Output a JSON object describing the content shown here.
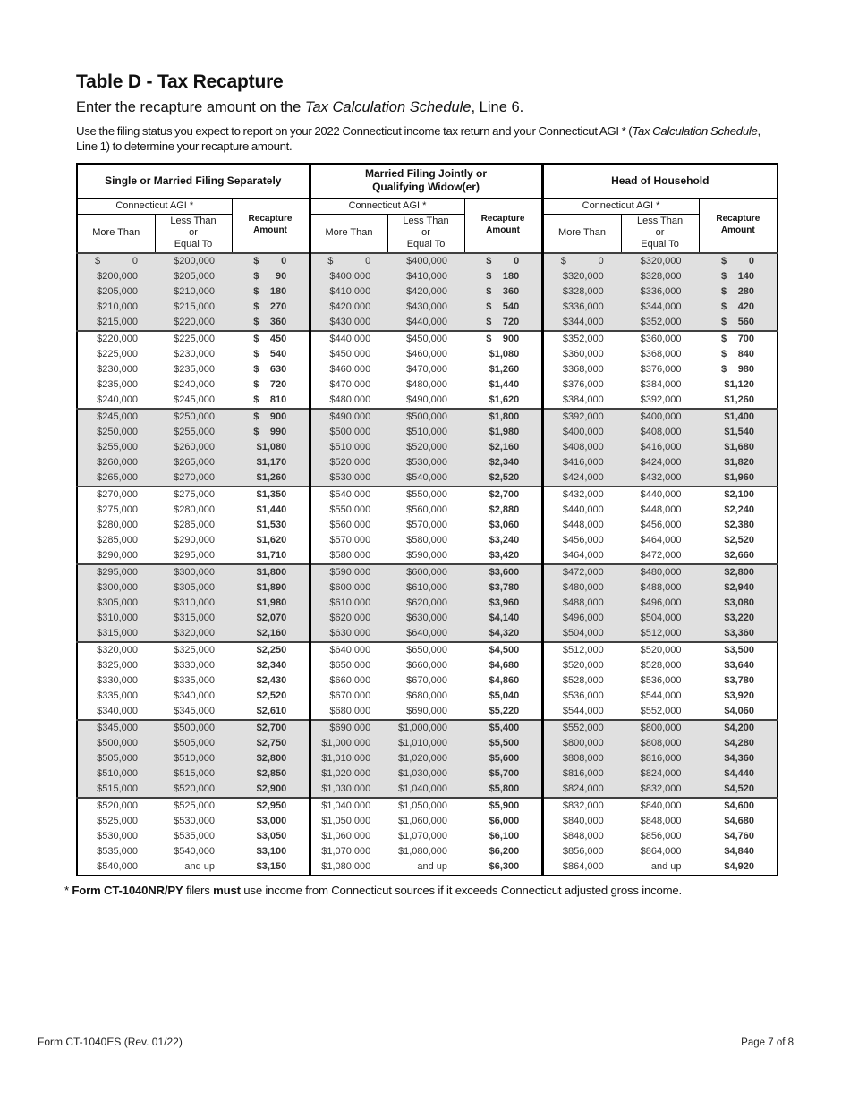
{
  "page": {
    "title": "Table D - Tax Recapture",
    "subtitle_parts": [
      {
        "t": "Enter the recapture amount on the "
      },
      {
        "t": "Tax Calculation Schedule",
        "i": 1
      },
      {
        "t": ", Line 6."
      }
    ],
    "instructions_parts": [
      {
        "t": "Use the filing status you expect to report on your 2022 Connecticut income tax return and your Connecticut AGI * ("
      },
      {
        "t": "Tax Calculation Schedule",
        "i": 1
      },
      {
        "t": ", Line 1) to determine your recapture amount."
      }
    ],
    "footnote_parts": [
      {
        "t": "* "
      },
      {
        "t": "Form CT-1040NR/PY",
        "b": 1
      },
      {
        "t": " filers "
      },
      {
        "t": "must",
        "b": 1
      },
      {
        "t": " use income from Connecticut sources if it exceeds Connecticut adjusted gross income."
      }
    ],
    "footer": {
      "left": "Form CT-1040ES (Rev. 01/22)",
      "right": "Page 7 of 8"
    }
  },
  "colors": {
    "shaded_band": "#e0e0e0",
    "band_rule": "#404040"
  },
  "table": {
    "band_size": 5,
    "groups": [
      {
        "title": "Single or Married Filing Separately",
        "agi_header": "Connecticut AGI *",
        "col_more": "More Than",
        "col_less": "Less Than\nor\nEqual To",
        "col_recapture": "Recapture\nAmount"
      },
      {
        "title": "Married Filing Jointly or\nQualifying Widow(er)",
        "agi_header": "Connecticut AGI *",
        "col_more": "More Than",
        "col_less": "Less Than\nor\nEqual To",
        "col_recapture": "Recapture\nAmount"
      },
      {
        "title": "Head of Household",
        "agi_header": "Connecticut AGI *",
        "col_more": "More Than",
        "col_less": "Less Than\nor\nEqual To",
        "col_recapture": "Recapture\nAmount"
      }
    ],
    "rows": [
      [
        "$ 0",
        "$200,000",
        "$ 0",
        "$ 0",
        "$400,000",
        "$ 0",
        "$ 0",
        "$320,000",
        "$ 0"
      ],
      [
        "$200,000",
        "$205,000",
        "$ 90",
        "$400,000",
        "$410,000",
        "$ 180",
        "$320,000",
        "$328,000",
        "$ 140"
      ],
      [
        "$205,000",
        "$210,000",
        "$ 180",
        "$410,000",
        "$420,000",
        "$ 360",
        "$328,000",
        "$336,000",
        "$ 280"
      ],
      [
        "$210,000",
        "$215,000",
        "$ 270",
        "$420,000",
        "$430,000",
        "$ 540",
        "$336,000",
        "$344,000",
        "$ 420"
      ],
      [
        "$215,000",
        "$220,000",
        "$ 360",
        "$430,000",
        "$440,000",
        "$ 720",
        "$344,000",
        "$352,000",
        "$ 560"
      ],
      [
        "$220,000",
        "$225,000",
        "$ 450",
        "$440,000",
        "$450,000",
        "$ 900",
        "$352,000",
        "$360,000",
        "$ 700"
      ],
      [
        "$225,000",
        "$230,000",
        "$ 540",
        "$450,000",
        "$460,000",
        "$1,080",
        "$360,000",
        "$368,000",
        "$ 840"
      ],
      [
        "$230,000",
        "$235,000",
        "$ 630",
        "$460,000",
        "$470,000",
        "$1,260",
        "$368,000",
        "$376,000",
        "$ 980"
      ],
      [
        "$235,000",
        "$240,000",
        "$ 720",
        "$470,000",
        "$480,000",
        "$1,440",
        "$376,000",
        "$384,000",
        "$1,120"
      ],
      [
        "$240,000",
        "$245,000",
        "$ 810",
        "$480,000",
        "$490,000",
        "$1,620",
        "$384,000",
        "$392,000",
        "$1,260"
      ],
      [
        "$245,000",
        "$250,000",
        "$ 900",
        "$490,000",
        "$500,000",
        "$1,800",
        "$392,000",
        "$400,000",
        "$1,400"
      ],
      [
        "$250,000",
        "$255,000",
        "$ 990",
        "$500,000",
        "$510,000",
        "$1,980",
        "$400,000",
        "$408,000",
        "$1,540"
      ],
      [
        "$255,000",
        "$260,000",
        "$1,080",
        "$510,000",
        "$520,000",
        "$2,160",
        "$408,000",
        "$416,000",
        "$1,680"
      ],
      [
        "$260,000",
        "$265,000",
        "$1,170",
        "$520,000",
        "$530,000",
        "$2,340",
        "$416,000",
        "$424,000",
        "$1,820"
      ],
      [
        "$265,000",
        "$270,000",
        "$1,260",
        "$530,000",
        "$540,000",
        "$2,520",
        "$424,000",
        "$432,000",
        "$1,960"
      ],
      [
        "$270,000",
        "$275,000",
        "$1,350",
        "$540,000",
        "$550,000",
        "$2,700",
        "$432,000",
        "$440,000",
        "$2,100"
      ],
      [
        "$275,000",
        "$280,000",
        "$1,440",
        "$550,000",
        "$560,000",
        "$2,880",
        "$440,000",
        "$448,000",
        "$2,240"
      ],
      [
        "$280,000",
        "$285,000",
        "$1,530",
        "$560,000",
        "$570,000",
        "$3,060",
        "$448,000",
        "$456,000",
        "$2,380"
      ],
      [
        "$285,000",
        "$290,000",
        "$1,620",
        "$570,000",
        "$580,000",
        "$3,240",
        "$456,000",
        "$464,000",
        "$2,520"
      ],
      [
        "$290,000",
        "$295,000",
        "$1,710",
        "$580,000",
        "$590,000",
        "$3,420",
        "$464,000",
        "$472,000",
        "$2,660"
      ],
      [
        "$295,000",
        "$300,000",
        "$1,800",
        "$590,000",
        "$600,000",
        "$3,600",
        "$472,000",
        "$480,000",
        "$2,800"
      ],
      [
        "$300,000",
        "$305,000",
        "$1,890",
        "$600,000",
        "$610,000",
        "$3,780",
        "$480,000",
        "$488,000",
        "$2,940"
      ],
      [
        "$305,000",
        "$310,000",
        "$1,980",
        "$610,000",
        "$620,000",
        "$3,960",
        "$488,000",
        "$496,000",
        "$3,080"
      ],
      [
        "$310,000",
        "$315,000",
        "$2,070",
        "$620,000",
        "$630,000",
        "$4,140",
        "$496,000",
        "$504,000",
        "$3,220"
      ],
      [
        "$315,000",
        "$320,000",
        "$2,160",
        "$630,000",
        "$640,000",
        "$4,320",
        "$504,000",
        "$512,000",
        "$3,360"
      ],
      [
        "$320,000",
        "$325,000",
        "$2,250",
        "$640,000",
        "$650,000",
        "$4,500",
        "$512,000",
        "$520,000",
        "$3,500"
      ],
      [
        "$325,000",
        "$330,000",
        "$2,340",
        "$650,000",
        "$660,000",
        "$4,680",
        "$520,000",
        "$528,000",
        "$3,640"
      ],
      [
        "$330,000",
        "$335,000",
        "$2,430",
        "$660,000",
        "$670,000",
        "$4,860",
        "$528,000",
        "$536,000",
        "$3,780"
      ],
      [
        "$335,000",
        "$340,000",
        "$2,520",
        "$670,000",
        "$680,000",
        "$5,040",
        "$536,000",
        "$544,000",
        "$3,920"
      ],
      [
        "$340,000",
        "$345,000",
        "$2,610",
        "$680,000",
        "$690,000",
        "$5,220",
        "$544,000",
        "$552,000",
        "$4,060"
      ],
      [
        "$345,000",
        "$500,000",
        "$2,700",
        "$690,000",
        "$1,000,000",
        "$5,400",
        "$552,000",
        "$800,000",
        "$4,200"
      ],
      [
        "$500,000",
        "$505,000",
        "$2,750",
        "$1,000,000",
        "$1,010,000",
        "$5,500",
        "$800,000",
        "$808,000",
        "$4,280"
      ],
      [
        "$505,000",
        "$510,000",
        "$2,800",
        "$1,010,000",
        "$1,020,000",
        "$5,600",
        "$808,000",
        "$816,000",
        "$4,360"
      ],
      [
        "$510,000",
        "$515,000",
        "$2,850",
        "$1,020,000",
        "$1,030,000",
        "$5,700",
        "$816,000",
        "$824,000",
        "$4,440"
      ],
      [
        "$515,000",
        "$520,000",
        "$2,900",
        "$1,030,000",
        "$1,040,000",
        "$5,800",
        "$824,000",
        "$832,000",
        "$4,520"
      ],
      [
        "$520,000",
        "$525,000",
        "$2,950",
        "$1,040,000",
        "$1,050,000",
        "$5,900",
        "$832,000",
        "$840,000",
        "$4,600"
      ],
      [
        "$525,000",
        "$530,000",
        "$3,000",
        "$1,050,000",
        "$1,060,000",
        "$6,000",
        "$840,000",
        "$848,000",
        "$4,680"
      ],
      [
        "$530,000",
        "$535,000",
        "$3,050",
        "$1,060,000",
        "$1,070,000",
        "$6,100",
        "$848,000",
        "$856,000",
        "$4,760"
      ],
      [
        "$535,000",
        "$540,000",
        "$3,100",
        "$1,070,000",
        "$1,080,000",
        "$6,200",
        "$856,000",
        "$864,000",
        "$4,840"
      ],
      [
        "$540,000",
        "and up",
        "$3,150",
        "$1,080,000",
        "and up",
        "$6,300",
        "$864,000",
        "and up",
        "$4,920"
      ]
    ]
  }
}
